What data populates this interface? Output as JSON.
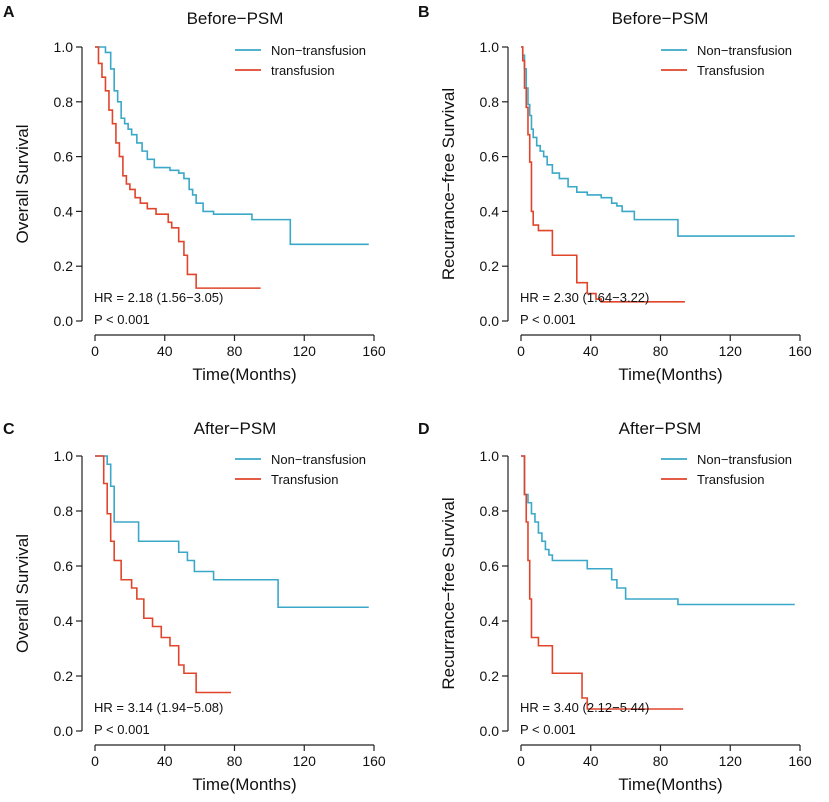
{
  "colors": {
    "non_transfusion": "#3AA8C8",
    "transfusion": "#E0452B"
  },
  "chart_data": [
    {
      "panel": "A",
      "type": "line",
      "title": "Before−PSM",
      "xlabel": "Time(Months)",
      "ylabel": "Overall Survival",
      "xlim": [
        0,
        160
      ],
      "ylim": [
        0,
        1
      ],
      "xticks": [
        "0",
        "40",
        "80",
        "120",
        "160"
      ],
      "yticks": [
        "0.0",
        "0.2",
        "0.4",
        "0.6",
        "0.8",
        "1.0"
      ],
      "legend": [
        "Non−transfusion",
        "transfusion"
      ],
      "annotation": [
        "HR = 2.18 (1.56−3.05)",
        "P < 0.001"
      ],
      "series": [
        {
          "name": "Non−transfusion",
          "color": "#3AA8C8",
          "x": [
            0,
            6,
            9,
            11,
            13,
            15,
            17,
            19,
            21,
            24,
            27,
            30,
            34,
            43,
            48,
            51,
            54,
            56,
            58,
            62,
            68,
            90,
            112,
            157
          ],
          "y": [
            1.0,
            0.98,
            0.92,
            0.84,
            0.8,
            0.74,
            0.72,
            0.7,
            0.68,
            0.65,
            0.62,
            0.59,
            0.56,
            0.55,
            0.54,
            0.52,
            0.48,
            0.46,
            0.43,
            0.4,
            0.39,
            0.37,
            0.28,
            0.28
          ]
        },
        {
          "name": "transfusion",
          "color": "#E0452B",
          "x": [
            0,
            2,
            4,
            6,
            8,
            10,
            12,
            14,
            16,
            18,
            20,
            23,
            26,
            30,
            35,
            42,
            44,
            48,
            51,
            53,
            58,
            95
          ],
          "y": [
            1.0,
            0.94,
            0.89,
            0.84,
            0.77,
            0.72,
            0.65,
            0.6,
            0.53,
            0.5,
            0.48,
            0.45,
            0.43,
            0.41,
            0.39,
            0.36,
            0.34,
            0.29,
            0.24,
            0.17,
            0.12,
            0.12
          ]
        }
      ]
    },
    {
      "panel": "B",
      "type": "line",
      "title": "Before−PSM",
      "xlabel": "Time(Months)",
      "ylabel": "Recurrance−free Survival",
      "xlim": [
        0,
        160
      ],
      "ylim": [
        0,
        1
      ],
      "xticks": [
        "0",
        "40",
        "80",
        "120",
        "160"
      ],
      "yticks": [
        "0.0",
        "0.2",
        "0.4",
        "0.6",
        "0.8",
        "1.0"
      ],
      "legend": [
        "Non−transfusion",
        "Transfusion"
      ],
      "annotation": [
        "HR = 2.30 (1.64−3.22)",
        "P < 0.001"
      ],
      "series": [
        {
          "name": "Non−transfusion",
          "color": "#3AA8C8",
          "x": [
            0,
            1,
            2,
            3,
            4,
            5,
            6,
            7,
            9,
            11,
            13,
            15,
            18,
            22,
            27,
            32,
            38,
            46,
            52,
            55,
            58,
            65,
            90,
            157
          ],
          "y": [
            1.0,
            0.97,
            0.92,
            0.85,
            0.79,
            0.75,
            0.7,
            0.67,
            0.64,
            0.62,
            0.6,
            0.57,
            0.54,
            0.52,
            0.49,
            0.47,
            0.46,
            0.45,
            0.43,
            0.42,
            0.4,
            0.37,
            0.31,
            0.31
          ]
        },
        {
          "name": "Transfusion",
          "color": "#E0452B",
          "x": [
            0,
            1,
            2,
            3,
            4,
            5,
            6,
            7,
            10,
            18,
            32,
            38,
            43,
            46,
            94
          ],
          "y": [
            1.0,
            0.95,
            0.85,
            0.78,
            0.68,
            0.58,
            0.4,
            0.35,
            0.33,
            0.24,
            0.14,
            0.1,
            0.08,
            0.07,
            0.07
          ]
        }
      ]
    },
    {
      "panel": "C",
      "type": "line",
      "title": "After−PSM",
      "xlabel": "Time(Months)",
      "ylabel": "Overall Survival",
      "xlim": [
        0,
        160
      ],
      "ylim": [
        0,
        1
      ],
      "xticks": [
        "0",
        "40",
        "80",
        "120",
        "160"
      ],
      "yticks": [
        "0.0",
        "0.2",
        "0.4",
        "0.6",
        "0.8",
        "1.0"
      ],
      "legend": [
        "Non−transfusion",
        "Transfusion"
      ],
      "annotation": [
        "HR = 3.14 (1.94−5.08)",
        "P < 0.001"
      ],
      "series": [
        {
          "name": "Non−transfusion",
          "color": "#3AA8C8",
          "x": [
            0,
            7,
            9,
            11,
            25,
            48,
            53,
            57,
            62,
            68,
            105,
            157
          ],
          "y": [
            1.0,
            0.97,
            0.89,
            0.76,
            0.69,
            0.65,
            0.62,
            0.58,
            0.58,
            0.55,
            0.45,
            0.45
          ]
        },
        {
          "name": "Transfusion",
          "color": "#E0452B",
          "x": [
            0,
            5,
            7,
            9,
            11,
            15,
            21,
            24,
            28,
            33,
            38,
            43,
            48,
            51,
            58,
            78
          ],
          "y": [
            1.0,
            0.9,
            0.79,
            0.69,
            0.62,
            0.55,
            0.52,
            0.48,
            0.41,
            0.38,
            0.34,
            0.31,
            0.24,
            0.21,
            0.14,
            0.14
          ]
        }
      ]
    },
    {
      "panel": "D",
      "type": "line",
      "title": "After−PSM",
      "xlabel": "Time(Months)",
      "ylabel": "Recurrance−free Survival",
      "xlim": [
        0,
        160
      ],
      "ylim": [
        0,
        1
      ],
      "xticks": [
        "0",
        "40",
        "80",
        "120",
        "160"
      ],
      "yticks": [
        "0.0",
        "0.2",
        "0.4",
        "0.6",
        "0.8",
        "1.0"
      ],
      "legend": [
        "Non−transfusion",
        "Transfusion"
      ],
      "annotation": [
        "HR = 3.40 (2.12−5.44)",
        "P < 0.001"
      ],
      "series": [
        {
          "name": "Non−transfusion",
          "color": "#3AA8C8",
          "x": [
            0,
            2,
            4,
            6,
            8,
            10,
            12,
            14,
            16,
            18,
            22,
            38,
            52,
            55,
            60,
            68,
            90,
            157
          ],
          "y": [
            1.0,
            0.86,
            0.83,
            0.79,
            0.76,
            0.72,
            0.69,
            0.66,
            0.64,
            0.62,
            0.62,
            0.59,
            0.55,
            0.52,
            0.48,
            0.48,
            0.46,
            0.46
          ]
        },
        {
          "name": "Transfusion",
          "color": "#E0452B",
          "x": [
            0,
            2,
            3,
            4,
            5,
            6,
            10,
            18,
            35,
            38,
            93
          ],
          "y": [
            1.0,
            0.86,
            0.76,
            0.62,
            0.48,
            0.34,
            0.31,
            0.21,
            0.12,
            0.08,
            0.08
          ]
        }
      ]
    }
  ]
}
